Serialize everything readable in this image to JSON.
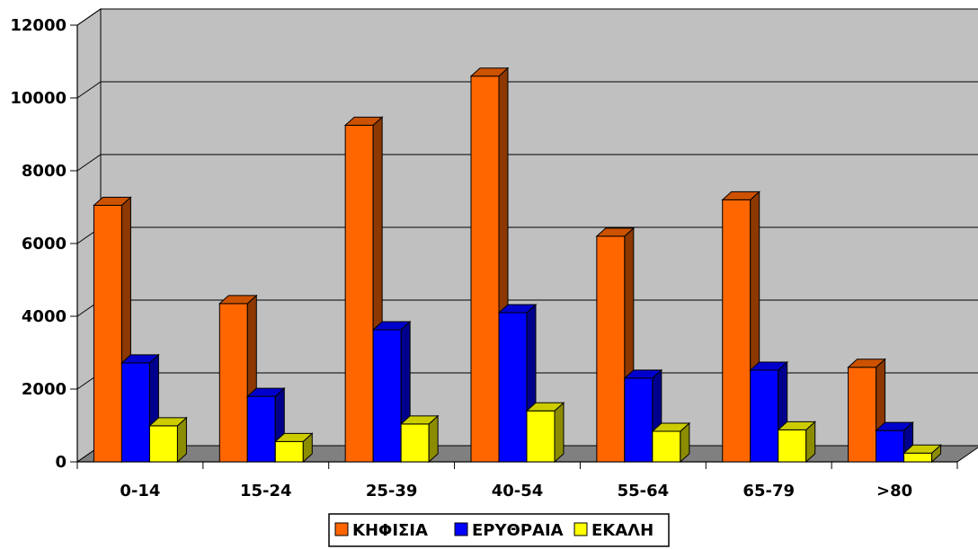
{
  "chart_data": {
    "type": "bar",
    "style": "3d-clustered-column",
    "categories": [
      "0-14",
      "15-24",
      "25-39",
      "40-54",
      "55-64",
      "65-79",
      ">80"
    ],
    "series": [
      {
        "name": "ΚΗΦΙΣΙΑ",
        "values": [
          7050,
          4350,
          9250,
          10600,
          6200,
          7200,
          2600
        ],
        "color": "#ff6600"
      },
      {
        "name": "ΕΡΥΘΡΑΙΑ",
        "values": [
          2720,
          1800,
          3630,
          4100,
          2300,
          2520,
          860
        ],
        "color": "#0000ff"
      },
      {
        "name": "ΕΚΑΛΗ",
        "values": [
          990,
          560,
          1040,
          1400,
          840,
          880,
          240
        ],
        "color": "#ffff00"
      }
    ],
    "ylim": [
      0,
      12000
    ],
    "yticks": [
      0,
      2000,
      4000,
      6000,
      8000,
      10000,
      12000
    ],
    "title": "",
    "xlabel": "",
    "ylabel": "",
    "grid": true,
    "legend_position": "bottom",
    "wall_color": "#c0c0c0",
    "floor_color": "#808080"
  }
}
